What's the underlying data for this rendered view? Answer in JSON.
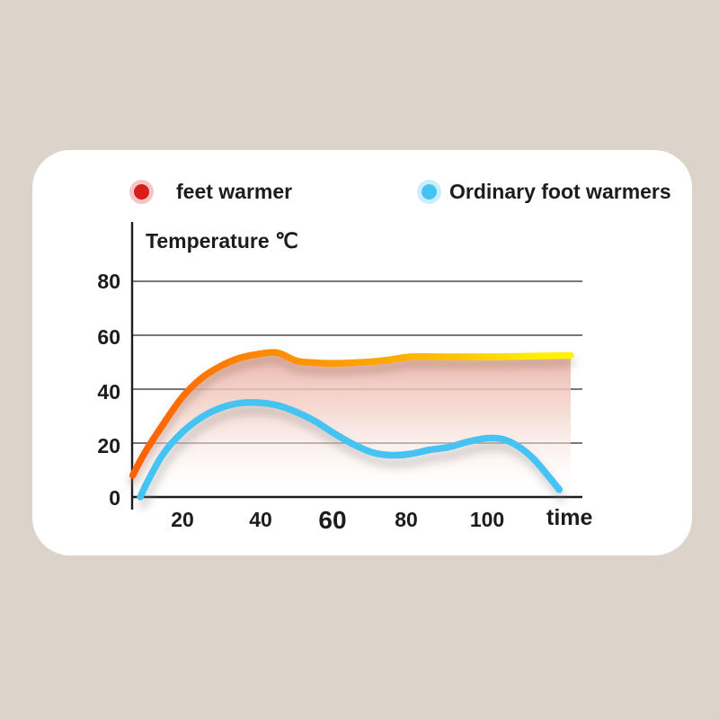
{
  "page": {
    "background_color": "#dcd4cb",
    "card_color": "#ffffff"
  },
  "legend": {
    "items": [
      {
        "label": "feet warmer",
        "dot_color": "#d81d1d",
        "halo_color": "rgba(216,29,29,0.25)"
      },
      {
        "label": "Ordinary foot warmers",
        "dot_color": "#45c3f2",
        "halo_color": "rgba(69,195,242,0.28)"
      }
    ]
  },
  "axis": {
    "y_title": "Temperature ℃",
    "x_title": "time",
    "y_ticks": [
      "80",
      "60",
      "40",
      "20",
      "0"
    ],
    "x_ticks": [
      "20",
      "40",
      "60",
      "80",
      "100"
    ]
  },
  "chart_data": {
    "type": "line",
    "title": "",
    "xlabel": "time",
    "ylabel": "Temperature ℃",
    "xlim": [
      0,
      125
    ],
    "ylim": [
      0,
      100
    ],
    "x_tick_values": [
      20,
      40,
      60,
      80,
      100
    ],
    "y_tick_values": [
      0,
      20,
      40,
      60,
      80
    ],
    "grid": "horizontal",
    "legend_position": "top",
    "series": [
      {
        "name": "feet warmer",
        "line_color_start": "#ff6400",
        "line_color_end": "#fff500",
        "area_fill": "pink-to-white vertical gradient under curve",
        "x": [
          7,
          10,
          15,
          20,
          25,
          30,
          35,
          40,
          45,
          50,
          55,
          60,
          65,
          70,
          75,
          80,
          90,
          100,
          110,
          122
        ],
        "values": [
          8,
          16,
          27,
          37,
          44,
          48.5,
          51.5,
          53,
          53.5,
          50.5,
          49.8,
          49.6,
          49.8,
          50.2,
          51,
          52,
          52,
          52,
          52.2,
          52.5
        ]
      },
      {
        "name": "Ordinary foot warmers",
        "color": "#45c3f2",
        "x": [
          9,
          11,
          15,
          20,
          25,
          30,
          35,
          40,
          45,
          50,
          55,
          60,
          65,
          70,
          75,
          80,
          85,
          90,
          95,
          100,
          104,
          108,
          112,
          116,
          119
        ],
        "values": [
          0,
          6,
          16,
          24,
          29.5,
          33,
          34.8,
          35,
          34,
          31.5,
          28,
          23.5,
          19.5,
          16.5,
          15.5,
          16,
          17.5,
          18.5,
          20.5,
          21.8,
          21.5,
          19,
          14.5,
          8,
          2.7
        ]
      }
    ]
  }
}
